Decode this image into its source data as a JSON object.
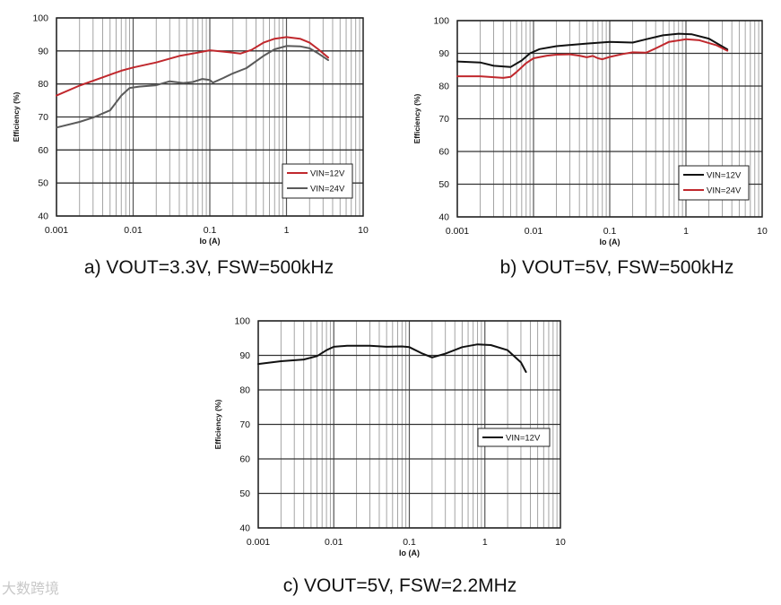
{
  "watermark": "大数跨境",
  "colors": {
    "red": "#c0282d",
    "gray": "#5a5a5a",
    "black": "#111111",
    "grid": "#8a8a8a"
  },
  "chart_data": [
    {
      "type": "line",
      "caption": "a) VOUT=3.3V, FSW=500kHz",
      "xlabel": "Io (A)",
      "ylabel": "Efficiency (%)",
      "xscale": "log",
      "xlim": [
        0.001,
        10
      ],
      "ylim": [
        40,
        100
      ],
      "xticks": [
        "0.001",
        "0.01",
        "0.1",
        "1",
        "10"
      ],
      "yticks": [
        "40",
        "50",
        "60",
        "70",
        "80",
        "90",
        "100"
      ],
      "grid": true,
      "legend": "bottom-right",
      "series": [
        {
          "name": "VIN=12V",
          "color": "#c0282d",
          "points": [
            [
              0.001,
              76.5
            ],
            [
              0.002,
              79.5
            ],
            [
              0.004,
              82
            ],
            [
              0.007,
              84
            ],
            [
              0.01,
              85
            ],
            [
              0.02,
              86.5
            ],
            [
              0.04,
              88.5
            ],
            [
              0.07,
              89.5
            ],
            [
              0.1,
              90.2
            ],
            [
              0.15,
              89.8
            ],
            [
              0.25,
              89.2
            ],
            [
              0.35,
              90.3
            ],
            [
              0.5,
              92.5
            ],
            [
              0.7,
              93.7
            ],
            [
              1.0,
              94.2
            ],
            [
              1.5,
              93.7
            ],
            [
              2.0,
              92.5
            ],
            [
              2.6,
              90.5
            ],
            [
              3.5,
              88.0
            ]
          ]
        },
        {
          "name": "VIN=24V",
          "color": "#5a5a5a",
          "points": [
            [
              0.001,
              66.8
            ],
            [
              0.002,
              68.5
            ],
            [
              0.003,
              69.8
            ],
            [
              0.005,
              72
            ],
            [
              0.007,
              76.5
            ],
            [
              0.009,
              78.8
            ],
            [
              0.012,
              79.2
            ],
            [
              0.02,
              79.6
            ],
            [
              0.03,
              80.8
            ],
            [
              0.045,
              80.3
            ],
            [
              0.06,
              80.6
            ],
            [
              0.08,
              81.5
            ],
            [
              0.1,
              81.2
            ],
            [
              0.11,
              80.4
            ],
            [
              0.15,
              81.8
            ],
            [
              0.2,
              83.2
            ],
            [
              0.3,
              84.8
            ],
            [
              0.5,
              88.5
            ],
            [
              0.7,
              90.5
            ],
            [
              1.0,
              91.5
            ],
            [
              1.5,
              91.4
            ],
            [
              2.0,
              90.8
            ],
            [
              2.5,
              89.5
            ],
            [
              3.5,
              87.2
            ]
          ]
        }
      ]
    },
    {
      "type": "line",
      "caption": "b) VOUT=5V, FSW=500kHz",
      "xlabel": "Io (A)",
      "ylabel": "Efficiency (%)",
      "xscale": "log",
      "xlim": [
        0.001,
        10
      ],
      "ylim": [
        40,
        100
      ],
      "xticks": [
        "0.001",
        "0.01",
        "0.1",
        "1",
        "10"
      ],
      "yticks": [
        "40",
        "50",
        "60",
        "70",
        "80",
        "90",
        "100"
      ],
      "grid": true,
      "legend": "bottom-right",
      "series": [
        {
          "name": "VIN=12V",
          "color": "#111111",
          "points": [
            [
              0.001,
              87.5
            ],
            [
              0.002,
              87.2
            ],
            [
              0.003,
              86.2
            ],
            [
              0.005,
              85.8
            ],
            [
              0.007,
              87.8
            ],
            [
              0.009,
              90.0
            ],
            [
              0.012,
              91.3
            ],
            [
              0.02,
              92.2
            ],
            [
              0.05,
              93.0
            ],
            [
              0.1,
              93.5
            ],
            [
              0.2,
              93.3
            ],
            [
              0.3,
              94.3
            ],
            [
              0.5,
              95.5
            ],
            [
              0.8,
              96.0
            ],
            [
              1.2,
              95.8
            ],
            [
              2.0,
              94.5
            ],
            [
              3.5,
              91.2
            ]
          ]
        },
        {
          "name": "VIN=24V",
          "color": "#c0282d",
          "points": [
            [
              0.001,
              83.0
            ],
            [
              0.002,
              83.0
            ],
            [
              0.004,
              82.5
            ],
            [
              0.005,
              82.8
            ],
            [
              0.006,
              84.3
            ],
            [
              0.008,
              87.0
            ],
            [
              0.01,
              88.5
            ],
            [
              0.015,
              89.3
            ],
            [
              0.02,
              89.6
            ],
            [
              0.03,
              89.7
            ],
            [
              0.04,
              89.3
            ],
            [
              0.05,
              88.8
            ],
            [
              0.06,
              89.2
            ],
            [
              0.07,
              88.5
            ],
            [
              0.08,
              88.2
            ],
            [
              0.1,
              88.9
            ],
            [
              0.15,
              89.8
            ],
            [
              0.2,
              90.3
            ],
            [
              0.3,
              90.2
            ],
            [
              0.4,
              91.5
            ],
            [
              0.6,
              93.5
            ],
            [
              1.0,
              94.3
            ],
            [
              1.5,
              94.0
            ],
            [
              2.5,
              92.5
            ],
            [
              3.5,
              90.8
            ]
          ]
        }
      ]
    },
    {
      "type": "line",
      "caption": "c) VOUT=5V, FSW=2.2MHz",
      "xlabel": "Io (A)",
      "ylabel": "Efficiency (%)",
      "xscale": "log",
      "xlim": [
        0.001,
        10
      ],
      "ylim": [
        40,
        100
      ],
      "xticks": [
        "0.001",
        "0.01",
        "0.1",
        "1",
        "10"
      ],
      "yticks": [
        "40",
        "50",
        "60",
        "70",
        "80",
        "90",
        "100"
      ],
      "grid": true,
      "legend": "middle-right",
      "series": [
        {
          "name": "VIN=12V",
          "color": "#111111",
          "points": [
            [
              0.001,
              87.5
            ],
            [
              0.002,
              88.3
            ],
            [
              0.004,
              88.8
            ],
            [
              0.006,
              89.8
            ],
            [
              0.008,
              91.5
            ],
            [
              0.01,
              92.5
            ],
            [
              0.015,
              92.8
            ],
            [
              0.03,
              92.8
            ],
            [
              0.05,
              92.5
            ],
            [
              0.08,
              92.6
            ],
            [
              0.1,
              92.4
            ],
            [
              0.15,
              90.5
            ],
            [
              0.2,
              89.4
            ],
            [
              0.3,
              90.5
            ],
            [
              0.5,
              92.4
            ],
            [
              0.8,
              93.2
            ],
            [
              1.2,
              93.0
            ],
            [
              2.0,
              91.5
            ],
            [
              3.0,
              88.0
            ],
            [
              3.5,
              85.2
            ]
          ]
        }
      ]
    }
  ]
}
